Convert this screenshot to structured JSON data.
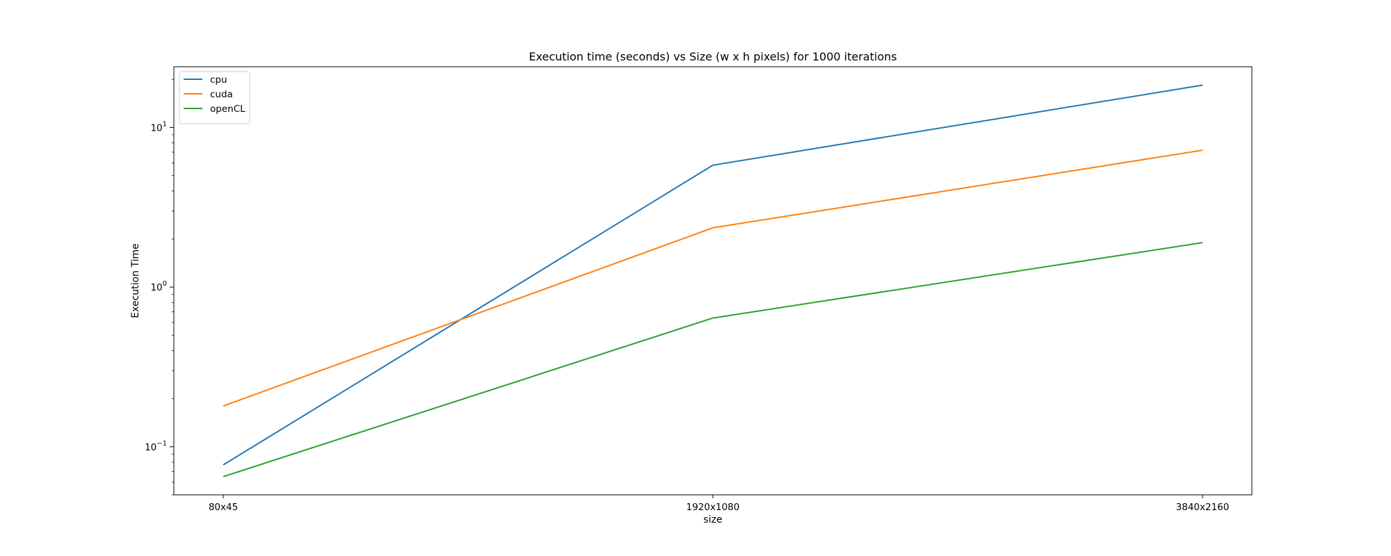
{
  "chart_data": {
    "type": "line",
    "title": "Execution time (seconds) vs Size (w x h pixels) for 1000 iterations",
    "xlabel": "size",
    "ylabel": "Execution Time",
    "categories": [
      "80x45",
      "1920x1080",
      "3840x2160"
    ],
    "y_scale": "log",
    "ylim": [
      0.05,
      24
    ],
    "y_ticks": [
      {
        "value": 0.1,
        "base": "10",
        "exp": "−1"
      },
      {
        "value": 1,
        "base": "10",
        "exp": "0"
      },
      {
        "value": 10,
        "base": "10",
        "exp": "1"
      }
    ],
    "grid": false,
    "legend_position": "upper-left",
    "series": [
      {
        "name": "cpu",
        "color": "#1f77b4",
        "values": [
          0.077,
          5.8,
          18.4
        ]
      },
      {
        "name": "cuda",
        "color": "#ff7f0e",
        "values": [
          0.18,
          2.35,
          7.2
        ]
      },
      {
        "name": "openCL",
        "color": "#2ca02c",
        "values": [
          0.065,
          0.64,
          1.9
        ]
      }
    ]
  }
}
